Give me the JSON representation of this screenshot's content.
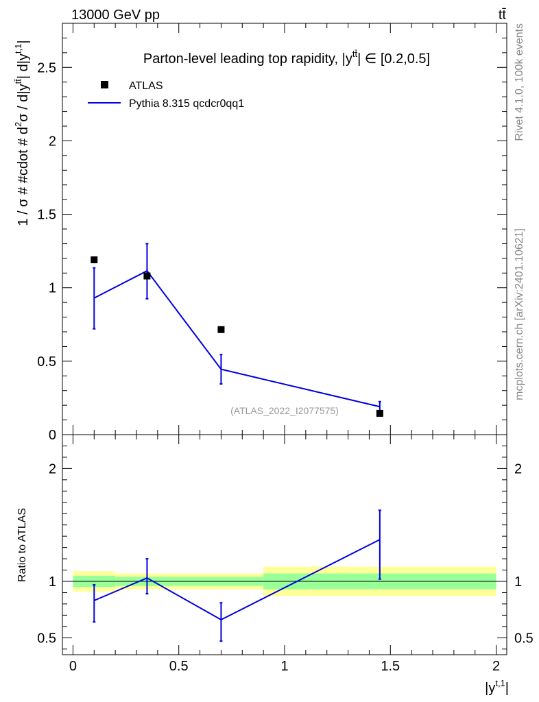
{
  "header": {
    "left": "13000 GeV pp",
    "right": "tt̄"
  },
  "side_labels": {
    "rivet": "Rivet 4.1.0,  100k events",
    "mcplots": "mcplots.cern.ch [arXiv:2401.10621]"
  },
  "source_label": "(ATLAS_2022_I2077575)",
  "colors": {
    "data": "#000000",
    "mc": "#0000e0",
    "band_inner": "#99ff99",
    "band_outer": "#ffff99"
  },
  "chart_data": [
    {
      "type": "scatter",
      "panel": "main",
      "title": "Parton-level leading top rapidity, |y^{tt̄}| ∈ [0.2,0.5]",
      "title_parts": {
        "a": "Parton-level leading top rapidity, |y",
        "sup": "tt̄",
        "b": "| ∈ [0.2,0.5]"
      },
      "ylabel": "1 / σ # #cdot # d²σ / d|y^{tt̄}| d|y^{t,1}|",
      "ylabel_parts": {
        "a": "1 / σ # #cdot # d",
        "sup1": "2",
        "b": "σ / d|y",
        "sup2": "tt̄",
        "c": "| d|y",
        "sup3": "t,1",
        "d": "|"
      },
      "xlim": [
        -0.05,
        2.05
      ],
      "ylim": [
        0,
        2.8
      ],
      "yticks": [
        0,
        0.5,
        1,
        1.5,
        2,
        2.5
      ],
      "ytick_labels": [
        "0",
        "0.5",
        "1",
        "1.5",
        "2",
        "2.5"
      ],
      "legend_position": "top-left",
      "series": [
        {
          "name": "ATLAS",
          "kind": "markers",
          "x": [
            0.1,
            0.35,
            0.7,
            1.45
          ],
          "values": [
            1.19,
            1.08,
            0.715,
            0.145
          ]
        },
        {
          "name": "Pythia 8.315 qcdcr0qq1",
          "kind": "line",
          "x": [
            0.1,
            0.35,
            0.7,
            1.45
          ],
          "values": [
            0.93,
            1.115,
            0.445,
            0.19
          ],
          "err_low": [
            0.72,
            0.925,
            0.345,
            0.155
          ],
          "err_high": [
            1.135,
            1.3,
            0.545,
            0.225
          ]
        }
      ]
    },
    {
      "type": "line",
      "panel": "ratio",
      "ylabel": "Ratio to ATLAS",
      "xlabel": "|y^{t,1}|",
      "xlabel_parts": {
        "a": "|y",
        "sup": "t,1",
        "b": "|"
      },
      "xlim": [
        -0.05,
        2.05
      ],
      "ylim": [
        0.35,
        2.3
      ],
      "xticks": [
        0,
        0.5,
        1,
        1.5,
        2
      ],
      "xtick_labels": [
        "0",
        "0.5",
        "1",
        "1.5",
        "2"
      ],
      "yticks": [
        0.5,
        1,
        2
      ],
      "ytick_labels": [
        "0.5",
        "1",
        "2"
      ],
      "bands": [
        {
          "x0": 0.0,
          "x1": 0.2,
          "inner": [
            0.95,
            1.05
          ],
          "outer": [
            0.91,
            1.09
          ]
        },
        {
          "x0": 0.2,
          "x1": 0.9,
          "inner": [
            0.96,
            1.04
          ],
          "outer": [
            0.93,
            1.07
          ]
        },
        {
          "x0": 0.9,
          "x1": 2.0,
          "inner": [
            0.93,
            1.07
          ],
          "outer": [
            0.87,
            1.13
          ]
        }
      ],
      "series": [
        {
          "name": "Pythia 8.315 qcdcr0qq1",
          "x": [
            0.1,
            0.35,
            0.7,
            1.45
          ],
          "values": [
            0.83,
            1.03,
            0.66,
            1.37
          ],
          "err_low": [
            0.64,
            0.89,
            0.47,
            1.02
          ],
          "err_high": [
            0.97,
            1.2,
            0.81,
            1.63
          ]
        }
      ]
    }
  ]
}
